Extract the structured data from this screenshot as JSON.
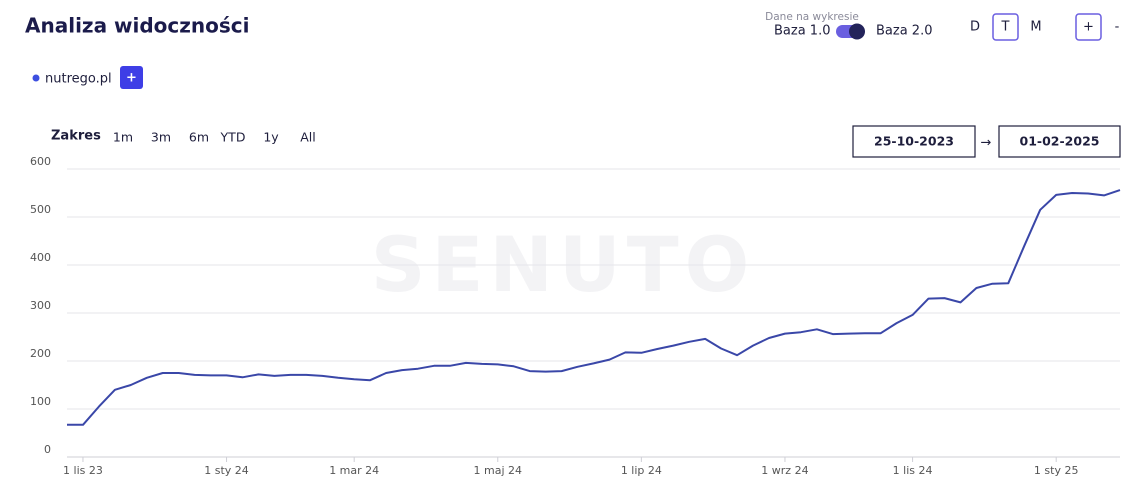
{
  "header": {
    "title": "Analiza widoczności",
    "data_label": "Dane na wykresie",
    "base_left": "Baza 1.0",
    "base_right": "Baza 2.0",
    "granularity": [
      "D",
      "T",
      "M"
    ],
    "zoom_in": "+",
    "zoom_out": "-"
  },
  "add_button": "+",
  "range": {
    "label": "Zakres",
    "options": [
      "1m",
      "3m",
      "6m",
      "YTD",
      "1y",
      "All"
    ],
    "start": "25-10-2023",
    "arrow": "→",
    "end": "01-02-2025"
  },
  "chart_data": {
    "type": "line",
    "watermark": "SENUTO",
    "categories": [
      null,
      "1 lis 23",
      null,
      null,
      null,
      null,
      null,
      null,
      null,
      null,
      "1 sty 24",
      null,
      null,
      null,
      null,
      null,
      null,
      null,
      "1 mar 24",
      null,
      null,
      null,
      null,
      null,
      null,
      null,
      null,
      "1 maj 24",
      null,
      null,
      null,
      null,
      null,
      null,
      null,
      null,
      "1 lip 24",
      null,
      null,
      null,
      null,
      null,
      null,
      null,
      null,
      "1 wrz 24",
      null,
      null,
      null,
      null,
      null,
      null,
      null,
      "1 lis 24",
      null,
      null,
      null,
      null,
      null,
      null,
      null,
      null,
      "1 sty 25",
      null,
      null,
      null,
      null
    ],
    "series": [
      {
        "name": "nutrego.pl",
        "color": "#3a47a8",
        "values": [
          67,
          67,
          105,
          140,
          150,
          165,
          175,
          175,
          171,
          170,
          170,
          166,
          172,
          169,
          171,
          171,
          169,
          165,
          162,
          160,
          175,
          181,
          184,
          190,
          190,
          196,
          194,
          193,
          189,
          179,
          178,
          179,
          188,
          195,
          203,
          218,
          217,
          225,
          232,
          240,
          246,
          226,
          212,
          232,
          248,
          257,
          260,
          266,
          256,
          257,
          258,
          258,
          279,
          296,
          330,
          331,
          322,
          352,
          361,
          362,
          440,
          515,
          546,
          550,
          549,
          545,
          556
        ]
      }
    ],
    "legend_color": "#3d4fe0",
    "ylim": [
      0,
      600
    ],
    "yticks": [
      0,
      100,
      200,
      300,
      400,
      500,
      600
    ],
    "grid": true
  }
}
